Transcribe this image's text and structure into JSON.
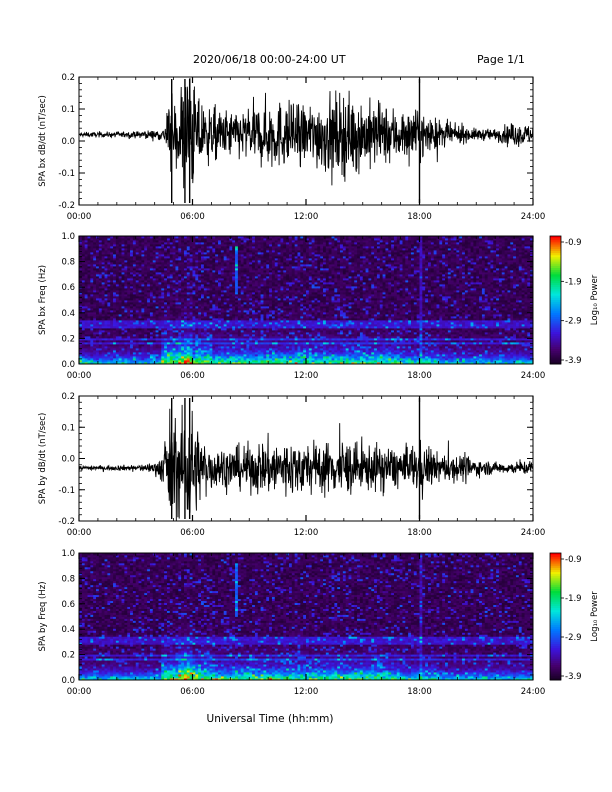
{
  "header": {
    "title": "2020/06/18  00:00-24:00 UT",
    "page": "Page 1/1"
  },
  "x_axis_title": "Universal Time (hh:mm)",
  "colorbar": {
    "label": "Log₁₀ Power",
    "ticks": [
      "-0.9",
      "-1.9",
      "-2.9",
      "-3.9"
    ]
  },
  "chart_data": [
    {
      "type": "line",
      "name": "bx-waveform",
      "ylabel": "SPA bx dB/dt (nT/sec)",
      "ylim": [
        -0.2,
        0.2
      ],
      "yticks": [
        "0.2",
        "0.1",
        "0.0",
        "-0.1",
        "-0.2"
      ],
      "xlim_hours": [
        0,
        24
      ],
      "xticks": [
        "00:00",
        "06:00",
        "12:00",
        "18:00",
        "24:00"
      ],
      "envelope": {
        "hour": [
          0,
          3,
          4.5,
          4.8,
          5,
          5.5,
          6,
          6.5,
          7,
          8,
          9,
          10,
          11,
          12,
          13,
          14,
          15,
          16,
          17,
          18,
          19,
          20,
          21,
          22,
          23,
          24
        ],
        "amplitude": [
          0.008,
          0.01,
          0.02,
          0.15,
          0.08,
          0.2,
          0.2,
          0.12,
          0.09,
          0.08,
          0.09,
          0.12,
          0.11,
          0.1,
          0.13,
          0.14,
          0.12,
          0.1,
          0.09,
          0.08,
          0.05,
          0.03,
          0.02,
          0.02,
          0.04,
          0.03
        ],
        "baseline": 0.02
      }
    },
    {
      "type": "heatmap",
      "name": "bx-spectrogram",
      "ylabel": "SPA bx Freq (Hz)",
      "ylim": [
        0.0,
        1.0
      ],
      "yticks": [
        "1.0",
        "0.8",
        "0.6",
        "0.4",
        "0.2",
        "0.0"
      ],
      "xlim_hours": [
        0,
        24
      ],
      "xticks": [
        "00:00",
        "06:00",
        "12:00",
        "18:00",
        "24:00"
      ],
      "zlim_log10": [
        -3.9,
        -0.9
      ]
    },
    {
      "type": "line",
      "name": "by-waveform",
      "ylabel": "SPA by dB/dt (nT/sec)",
      "ylim": [
        -0.2,
        0.2
      ],
      "yticks": [
        "0.2",
        "0.1",
        "0.0",
        "-0.1",
        "-0.2"
      ],
      "xlim_hours": [
        0,
        24
      ],
      "xticks": [
        "00:00",
        "06:00",
        "12:00",
        "18:00",
        "24:00"
      ],
      "envelope": {
        "hour": [
          0,
          3,
          4,
          4.5,
          4.8,
          5,
          5.5,
          6,
          6.5,
          7,
          8,
          9,
          10,
          11,
          12,
          13,
          14,
          15,
          16,
          17,
          18,
          19,
          20,
          21,
          22,
          23,
          24
        ],
        "amplitude": [
          0.008,
          0.01,
          0.02,
          0.06,
          0.2,
          0.15,
          0.2,
          0.2,
          0.1,
          0.08,
          0.07,
          0.08,
          0.1,
          0.1,
          0.09,
          0.09,
          0.1,
          0.08,
          0.08,
          0.07,
          0.09,
          0.05,
          0.05,
          0.03,
          0.02,
          0.02,
          0.03
        ],
        "baseline": -0.03
      }
    },
    {
      "type": "heatmap",
      "name": "by-spectrogram",
      "ylabel": "SPA by Freq (Hz)",
      "ylim": [
        0.0,
        1.0
      ],
      "yticks": [
        "1.0",
        "0.8",
        "0.6",
        "0.4",
        "0.2",
        "0.0"
      ],
      "xlim_hours": [
        0,
        24
      ],
      "xticks": [
        "00:00",
        "06:00",
        "12:00",
        "18:00",
        "24:00"
      ],
      "zlim_log10": [
        -3.9,
        -0.9
      ]
    }
  ]
}
